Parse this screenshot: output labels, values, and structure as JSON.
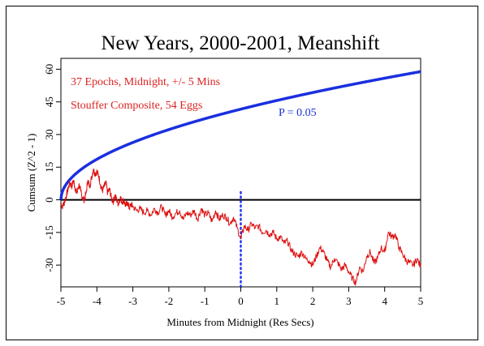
{
  "chart_data": {
    "type": "line",
    "title": "New Years, 2000-2001, Meanshift",
    "xlabel": "Minutes from Midnight (Res Secs)",
    "ylabel": "Cumsum (Z^2 - 1)",
    "xlim": [
      -5,
      5
    ],
    "ylim": [
      -40,
      65
    ],
    "x_ticks": [
      -5,
      -4,
      -3,
      -2,
      -1,
      0,
      1,
      2,
      3,
      4,
      5
    ],
    "x_tick_labels": [
      "-5",
      "-4",
      "-3",
      "-2",
      "-1",
      "0",
      "1",
      "2",
      "3",
      "4",
      "5"
    ],
    "y_ticks": [
      -30,
      -15,
      0,
      15,
      30,
      45,
      60
    ],
    "y_tick_labels": [
      "-30",
      "-15",
      "0",
      "15",
      "30",
      "45",
      "60"
    ],
    "grid": false,
    "annotations": [
      {
        "text": "37 Epochs, Midnight, +/- 5 Mins",
        "color": "#dd2222"
      },
      {
        "text": "Stouffer Composite, 54 Eggs",
        "color": "#dd2222"
      },
      {
        "text": "P = 0.05",
        "color": "#1a2fd6"
      }
    ],
    "reference_lines": [
      {
        "kind": "horizontal",
        "y": 0,
        "color": "#000000",
        "style": "solid"
      },
      {
        "kind": "vertical",
        "x": 0,
        "color": "#2233ee",
        "style": "dotted"
      }
    ],
    "series": [
      {
        "role": "significance-envelope",
        "color": "#1a2fe0",
        "formula": "1.645*sqrt(2*n), n = seconds since -5 min",
        "x": [
          -5,
          -4.9,
          -4.75,
          -4.5,
          -4,
          -3.5,
          -3,
          -2,
          -1,
          0,
          1,
          2,
          3,
          4,
          5
        ],
        "y": [
          0,
          5.4,
          9.3,
          13.2,
          18.7,
          22.8,
          26.4,
          32.3,
          37.3,
          41.7,
          45.6,
          49.3,
          52.6,
          55.9,
          58.9
        ]
      },
      {
        "role": "cumulative-deviation",
        "color": "#dd1111",
        "x": [
          -5,
          -4.95,
          -4.9,
          -4.85,
          -4.8,
          -4.75,
          -4.7,
          -4.65,
          -4.6,
          -4.55,
          -4.5,
          -4.45,
          -4.4,
          -4.35,
          -4.3,
          -4.25,
          -4.2,
          -4.15,
          -4.1,
          -4.05,
          -4,
          -3.95,
          -3.9,
          -3.85,
          -3.8,
          -3.75,
          -3.7,
          -3.65,
          -3.6,
          -3.55,
          -3.5,
          -3.45,
          -3.4,
          -3.35,
          -3.3,
          -3.25,
          -3.2,
          -3.15,
          -3.1,
          -3.05,
          -3,
          -2.9,
          -2.8,
          -2.7,
          -2.6,
          -2.5,
          -2.4,
          -2.3,
          -2.2,
          -2.1,
          -2,
          -1.9,
          -1.8,
          -1.7,
          -1.6,
          -1.5,
          -1.4,
          -1.3,
          -1.2,
          -1.1,
          -1,
          -0.9,
          -0.8,
          -0.7,
          -0.6,
          -0.5,
          -0.4,
          -0.3,
          -0.2,
          -0.1,
          0,
          0.1,
          0.2,
          0.3,
          0.4,
          0.5,
          0.6,
          0.7,
          0.8,
          0.9,
          1,
          1.1,
          1.2,
          1.3,
          1.4,
          1.5,
          1.6,
          1.7,
          1.8,
          1.9,
          2,
          2.1,
          2.2,
          2.3,
          2.4,
          2.5,
          2.6,
          2.7,
          2.8,
          2.9,
          3,
          3.1,
          3.2,
          3.3,
          3.4,
          3.5,
          3.6,
          3.7,
          3.8,
          3.9,
          4,
          4.1,
          4.2,
          4.3,
          4.4,
          4.5,
          4.6,
          4.7,
          4.8,
          4.9,
          5
        ],
        "y": [
          -2,
          -3,
          -1,
          2,
          5,
          8,
          6,
          9,
          5,
          3,
          7,
          4,
          1,
          0,
          3,
          9,
          6,
          10,
          14,
          12,
          13,
          11,
          7,
          4,
          6,
          8,
          3,
          5,
          1,
          -1,
          2,
          0,
          -2,
          1,
          -1,
          0,
          -3,
          -1,
          -4,
          -2,
          -3,
          -5,
          -4,
          -6,
          -5,
          -7,
          -4,
          -6,
          -3,
          -7,
          -5,
          -8,
          -6,
          -5,
          -9,
          -6,
          -7,
          -5,
          -9,
          -4,
          -7,
          -6,
          -10,
          -5,
          -9,
          -7,
          -8,
          -11,
          -8,
          -13,
          -18,
          -12,
          -14,
          -11,
          -13,
          -12,
          -15,
          -14,
          -16,
          -15,
          -18,
          -17,
          -20,
          -19,
          -23,
          -25,
          -26,
          -24,
          -27,
          -28,
          -30,
          -26,
          -22,
          -24,
          -28,
          -31,
          -27,
          -29,
          -32,
          -30,
          -33,
          -36,
          -38,
          -31,
          -33,
          -26,
          -24,
          -29,
          -27,
          -22,
          -24,
          -15,
          -17,
          -16,
          -22,
          -25,
          -28,
          -29,
          -30,
          -27,
          -31
        ]
      }
    ]
  }
}
